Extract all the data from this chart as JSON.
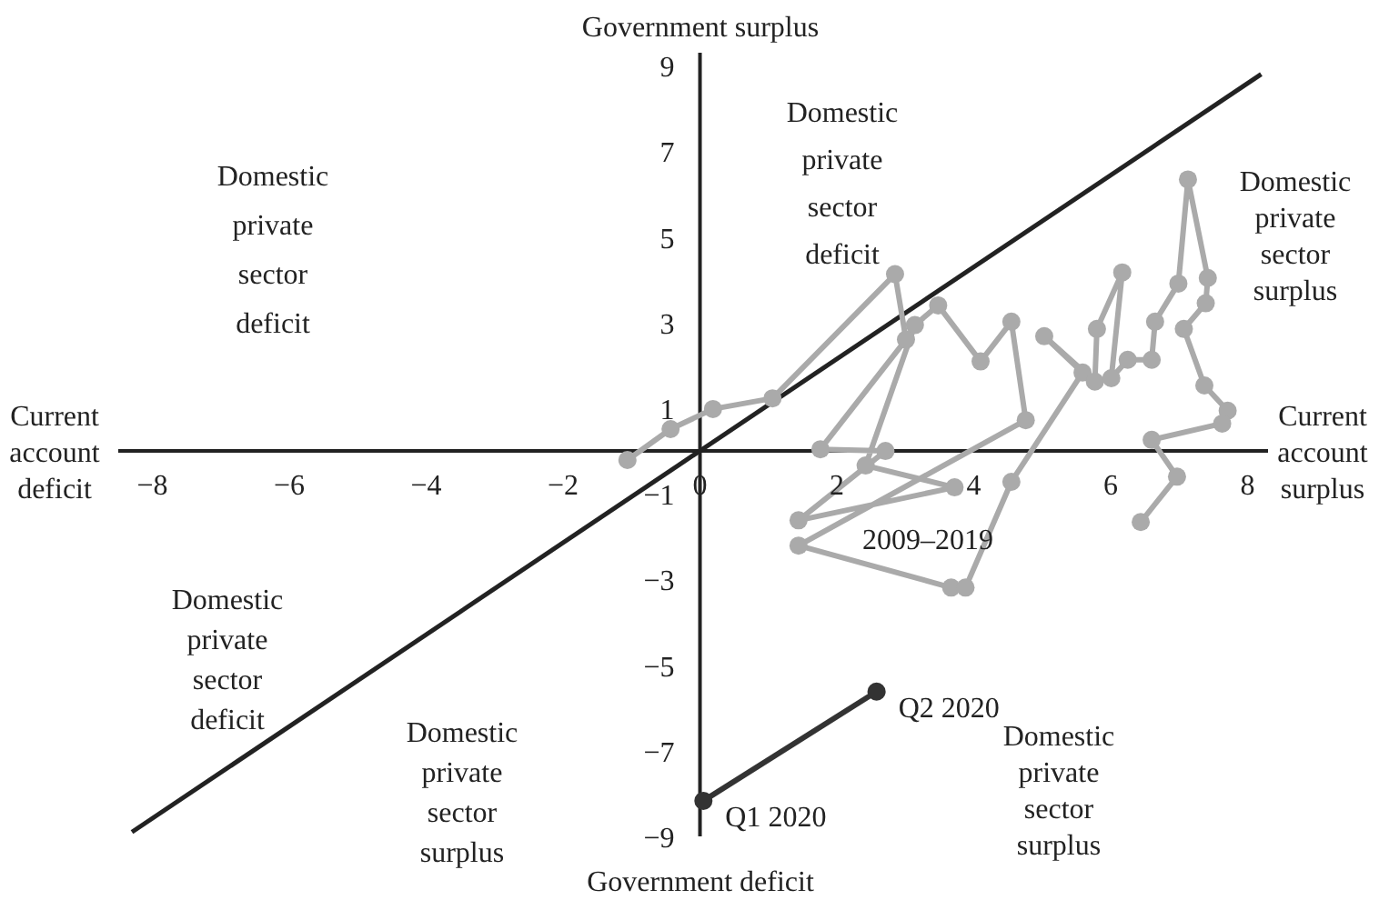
{
  "chart_data": {
    "type": "line",
    "xlim": [
      -8.5,
      8.3
    ],
    "ylim": [
      -9,
      9.3
    ],
    "xticks": [
      -8,
      -6,
      -4,
      -2,
      0,
      2,
      4,
      6,
      8
    ],
    "yticks": [
      -9,
      -7,
      -5,
      -3,
      -1,
      1,
      3,
      5,
      7,
      9
    ],
    "marker": "circle",
    "series": [
      {
        "type": "line",
        "marker": "none",
        "color": "#222222",
        "x": [
          -8.3,
          8.2
        ],
        "values": [
          -8.9,
          8.8
        ]
      },
      {
        "name": "2009–2019",
        "color": "#aaaaaa",
        "x": [
          -1.06,
          -0.43,
          0.19,
          1.06,
          2.85,
          3.01,
          1.76,
          2.71,
          1.44,
          3.72,
          2.42,
          3.14,
          3.48,
          4.1,
          4.55,
          4.76,
          1.44,
          3.67,
          3.88,
          4.55,
          5.59,
          5.03,
          5.77,
          5.8,
          6.17,
          6.01,
          6.25,
          6.6,
          6.65,
          6.99,
          7.13,
          7.42,
          7.39,
          7.07,
          7.37,
          7.71,
          7.63,
          6.6,
          6.97,
          6.44
        ],
        "values": [
          -0.21,
          0.51,
          0.98,
          1.23,
          4.13,
          2.6,
          0.04,
          0.0,
          -1.62,
          -0.85,
          -0.34,
          2.94,
          3.4,
          2.09,
          3.02,
          0.72,
          -2.21,
          -3.19,
          -3.19,
          -0.72,
          1.83,
          2.68,
          1.62,
          2.85,
          4.17,
          1.7,
          2.13,
          2.13,
          3.02,
          3.91,
          6.34,
          4.04,
          3.45,
          2.85,
          1.53,
          0.94,
          0.64,
          0.26,
          -0.6,
          -1.66
        ]
      },
      {
        "color": "#333333",
        "x": [
          0.05,
          2.58
        ],
        "values": [
          -8.17,
          -5.62
        ]
      }
    ],
    "annotations": [
      "Government surplus",
      "Government deficit",
      "Current account deficit",
      "Current account surplus",
      "Domestic private sector deficit",
      "Domestic private sector deficit",
      "Domestic private sector surplus",
      "Domestic private sector deficit",
      "Domestic private sector surplus",
      "Domestic private sector surplus",
      {
        "text": "Q1 2020",
        "x": 0.05,
        "y": -8.17
      },
      {
        "text": "Q2 2020",
        "x": 2.58,
        "y": -5.62
      }
    ]
  }
}
